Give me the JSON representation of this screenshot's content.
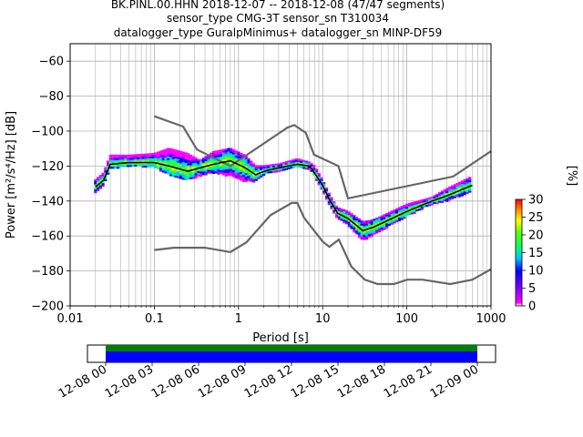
{
  "chart_data": {
    "type": "heatmap",
    "title_lines": [
      "BK.PINL.00.HHN   2018-12-07 -- 2018-12-08  (47/47 segments)",
      "sensor_type CMG-3T sensor_sn T310034",
      "datalogger_type GuralpMinimus+ datalogger_sn MINP-DF59"
    ],
    "xlabel": "Period [s]",
    "ylabel": "Power [m²/s⁴/Hz] [dB]",
    "xscale": "log",
    "xlim": [
      0.01,
      1000
    ],
    "ylim": [
      -200,
      -50
    ],
    "x_tick_labels": [
      "0.01",
      "0.1",
      "1",
      "10",
      "100",
      "1000"
    ],
    "y_ticks": [
      -60,
      -80,
      -100,
      -120,
      -140,
      -160,
      -180,
      -200
    ],
    "y_tick_labels": [
      "−60",
      "−80",
      "−100",
      "−120",
      "−140",
      "−160",
      "−180",
      "−200"
    ],
    "grid": true,
    "colorbar": {
      "label": "[%]",
      "range": [
        0,
        30
      ],
      "ticks": [
        0,
        5,
        10,
        15,
        20,
        25,
        30
      ]
    },
    "noise_models": [
      {
        "x": [
          0.1,
          0.22,
          0.32,
          0.8,
          3.8,
          4.6,
          6.3,
          7.9,
          15.4,
          20,
          354.8,
          1000
        ],
        "y": [
          -91.5,
          -97.4,
          -110.5,
          -120,
          -98,
          -96.5,
          -101,
          -113.5,
          -120,
          -138.5,
          -126,
          -111.5
        ]
      },
      {
        "x": [
          0.1,
          0.17,
          0.4,
          0.8,
          1.24,
          2.4,
          4.3,
          5,
          6,
          10,
          12,
          15.6,
          21.9,
          31.6,
          45,
          70,
          101,
          154,
          328,
          600,
          1000
        ],
        "y": [
          -168,
          -166.7,
          -166.7,
          -169.2,
          -163.7,
          -148.1,
          -141.1,
          -141.1,
          -149.5,
          -163.2,
          -166.2,
          -162.1,
          -177.5,
          -185,
          -187.5,
          -187.5,
          -185,
          -185,
          -187.5,
          -185,
          -179
        ]
      }
    ],
    "mode_curve": {
      "x": [
        0.02,
        0.025,
        0.03,
        0.05,
        0.1,
        0.15,
        0.25,
        0.35,
        0.5,
        0.8,
        1.2,
        1.6,
        2,
        3,
        5,
        7,
        8,
        10,
        12,
        15,
        20,
        30,
        40,
        60,
        100,
        200,
        300,
        600
      ],
      "y": [
        -132,
        -128,
        -119,
        -118,
        -118,
        -120,
        -123,
        -121,
        -119,
        -117,
        -121,
        -125,
        -123,
        -121,
        -119,
        -120,
        -124,
        -131,
        -139,
        -147,
        -150,
        -157,
        -155,
        -151,
        -146,
        -140,
        -137,
        -131
      ]
    },
    "density_band": {
      "x": [
        0.02,
        0.025,
        0.03,
        0.05,
        0.1,
        0.15,
        0.25,
        0.35,
        0.5,
        0.8,
        1.2,
        1.6,
        2,
        3,
        5,
        7,
        8,
        10,
        12,
        15,
        20,
        30,
        40,
        60,
        100,
        200,
        300,
        600
      ],
      "low": [
        -135,
        -131,
        -122,
        -120,
        -121,
        -125,
        -128,
        -126,
        -124,
        -126,
        -129,
        -129,
        -125,
        -123,
        -121,
        -122,
        -126,
        -134,
        -142,
        -150,
        -154,
        -163,
        -160,
        -155,
        -149,
        -142,
        -140,
        -135
      ],
      "high": [
        -128,
        -124,
        -114,
        -114,
        -113,
        -110,
        -113,
        -117,
        -112,
        -110,
        -114,
        -120,
        -120,
        -119,
        -116,
        -118,
        -120,
        -128,
        -136,
        -144,
        -146,
        -152,
        -151,
        -147,
        -142,
        -138,
        -133,
        -126
      ]
    },
    "time_axis": {
      "tick_labels": [
        "12-08 00",
        "12-08 03",
        "12-08 06",
        "12-08 09",
        "12-08 12",
        "12-08 15",
        "12-08 18",
        "12-08 21",
        "12-09 00"
      ],
      "coverage_colors": [
        "#008000",
        "#0000ff"
      ]
    }
  },
  "colors": {
    "noise_model": "#666666",
    "mode": "#000000",
    "grid": "#b0b0b0"
  }
}
